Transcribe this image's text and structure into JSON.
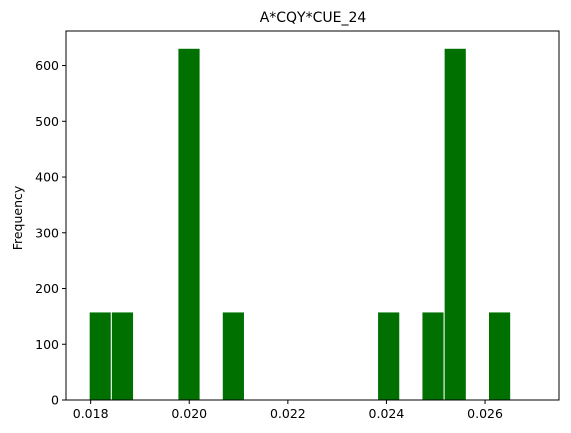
{
  "chart_data": {
    "type": "bar",
    "title": "A*CQY*CUE_24",
    "xlabel": "",
    "ylabel": "Frequency",
    "xlim": [
      0.0175,
      0.0275
    ],
    "ylim": [
      0,
      662
    ],
    "x_ticks": [
      0.018,
      0.02,
      0.022,
      0.024,
      0.026
    ],
    "x_tick_labels": [
      "0.018",
      "0.020",
      "0.022",
      "0.024",
      "0.026"
    ],
    "y_ticks": [
      0,
      100,
      200,
      300,
      400,
      500,
      600
    ],
    "y_tick_labels": [
      "0",
      "100",
      "200",
      "300",
      "400",
      "500",
      "600"
    ],
    "bin_edges": [
      0.01797,
      0.01842,
      0.01887,
      0.01932,
      0.01977,
      0.02022,
      0.02067,
      0.02112,
      0.02157,
      0.02202,
      0.02247,
      0.02292,
      0.02337,
      0.02382,
      0.02427,
      0.02472,
      0.02517,
      0.02562,
      0.02607,
      0.02652,
      0.02697
    ],
    "values": [
      158,
      158,
      0,
      0,
      631,
      0,
      158,
      0,
      0,
      0,
      0,
      0,
      0,
      158,
      0,
      158,
      631,
      0,
      158,
      0
    ],
    "grid": false,
    "bar_color": "#007000",
    "bar_edge_color": "#ffffff"
  }
}
